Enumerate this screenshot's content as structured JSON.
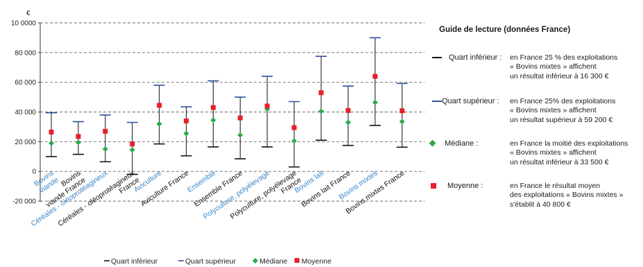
{
  "chart_data": {
    "type": "box-range",
    "y_unit": "€",
    "ylim": [
      -20000,
      100000
    ],
    "y_ticks": [
      {
        "value": 100000,
        "label": "10 0000"
      },
      {
        "value": 80000,
        "label": "80 000"
      },
      {
        "value": 60000,
        "label": "60 000"
      },
      {
        "value": 40000,
        "label": "40 000"
      },
      {
        "value": 20000,
        "label": "20 000"
      },
      {
        "value": 0,
        "label": "0"
      },
      {
        "value": -20000,
        "label": "-20 000"
      }
    ],
    "grid": "dashed horizontal",
    "categories": [
      {
        "label": [
          "Bovins",
          "viande"
        ],
        "blue": true,
        "q1": 10000,
        "q3": 39500,
        "median": 19000,
        "mean": 26500
      },
      {
        "label": [
          "Bovins",
          "viande France"
        ],
        "blue": false,
        "q1": 11500,
        "q3": 33500,
        "median": 19500,
        "mean": 23500
      },
      {
        "label": [
          "Céréales - oléoprotéagineux"
        ],
        "blue": true,
        "q1": 6500,
        "q3": 38000,
        "median": 15000,
        "mean": 27000
      },
      {
        "label": [
          "Céréales - oléoprotéagineux",
          "France"
        ],
        "blue": false,
        "q1": -2000,
        "q3": 33000,
        "median": 14500,
        "mean": 18500
      },
      {
        "label": [
          "Aviculture"
        ],
        "blue": true,
        "q1": 18500,
        "q3": 58000,
        "median": 32000,
        "mean": 44500
      },
      {
        "label": [
          "Aviculture France"
        ],
        "blue": false,
        "q1": 10500,
        "q3": 43500,
        "median": 25500,
        "mean": 34000
      },
      {
        "label": [
          "Ensemble"
        ],
        "blue": true,
        "q1": 16500,
        "q3": 61000,
        "median": 34500,
        "mean": 43000
      },
      {
        "label": [
          "Ensemble France"
        ],
        "blue": false,
        "q1": 8500,
        "q3": 50000,
        "median": 24500,
        "mean": 36000
      },
      {
        "label": [
          "Polyculture, polyélevage"
        ],
        "blue": true,
        "q1": 16500,
        "q3": 64000,
        "median": 42000,
        "mean": 44000
      },
      {
        "label": [
          "Polyculture, polyélevage",
          "France"
        ],
        "blue": false,
        "q1": 3000,
        "q3": 47000,
        "median": 20500,
        "mean": 29500
      },
      {
        "label": [
          "Bovins lait"
        ],
        "blue": true,
        "q1": 21000,
        "q3": 77500,
        "median": 40500,
        "mean": 53000
      },
      {
        "label": [
          "Bovins lait France"
        ],
        "blue": false,
        "q1": 17500,
        "q3": 57500,
        "median": 33000,
        "mean": 41000
      },
      {
        "label": [
          "Bovins mixtes"
        ],
        "blue": true,
        "q1": 31000,
        "q3": 90000,
        "median": 46500,
        "mean": 64000
      },
      {
        "label": [
          "Bovins mixtes France"
        ],
        "blue": false,
        "q1": 16300,
        "q3": 59200,
        "median": 33500,
        "mean": 40800
      }
    ],
    "legend": {
      "placement": "bottom",
      "items": [
        {
          "key": "q1",
          "label": "Quart inférieur"
        },
        {
          "key": "q3",
          "label": "Quart supérieur"
        },
        {
          "key": "median",
          "label": "Médiane"
        },
        {
          "key": "mean",
          "label": "Moyenne"
        }
      ]
    },
    "colors": {
      "q1": "#111111",
      "q3": "#2d4fa0",
      "median": "#2eaa4a",
      "mean": "#e8202a",
      "whisker": "#222222",
      "label_blue": "#3a86c8",
      "label_black": "#111111",
      "grid": "#666666"
    }
  },
  "guide": {
    "title": "Guide de lecture (données France)",
    "rows": [
      {
        "key": "q1",
        "label": "Quart inférieur :",
        "text": "en France 25 % des exploitations\n« Bovins mixtes » affichent\nun résultat inférieur à 16 300 €"
      },
      {
        "key": "q3",
        "label": "Quart supérieur :",
        "text": "en France 25% des exploitations\n« Bovins mixtes » affichent\nun résultat supérieur à 59 200 €"
      },
      {
        "key": "median",
        "label": "Médiane :",
        "text": "en France la moitié des exploitations\n« Bovins mixtes » affichent\nun résultat inférieur à 33 500 €"
      },
      {
        "key": "mean",
        "label": "Moyenne :",
        "text": "en France le résultat moyen\ndes exploitations « Bovins mixtes »\ns'établit à 40 800 €"
      }
    ]
  }
}
